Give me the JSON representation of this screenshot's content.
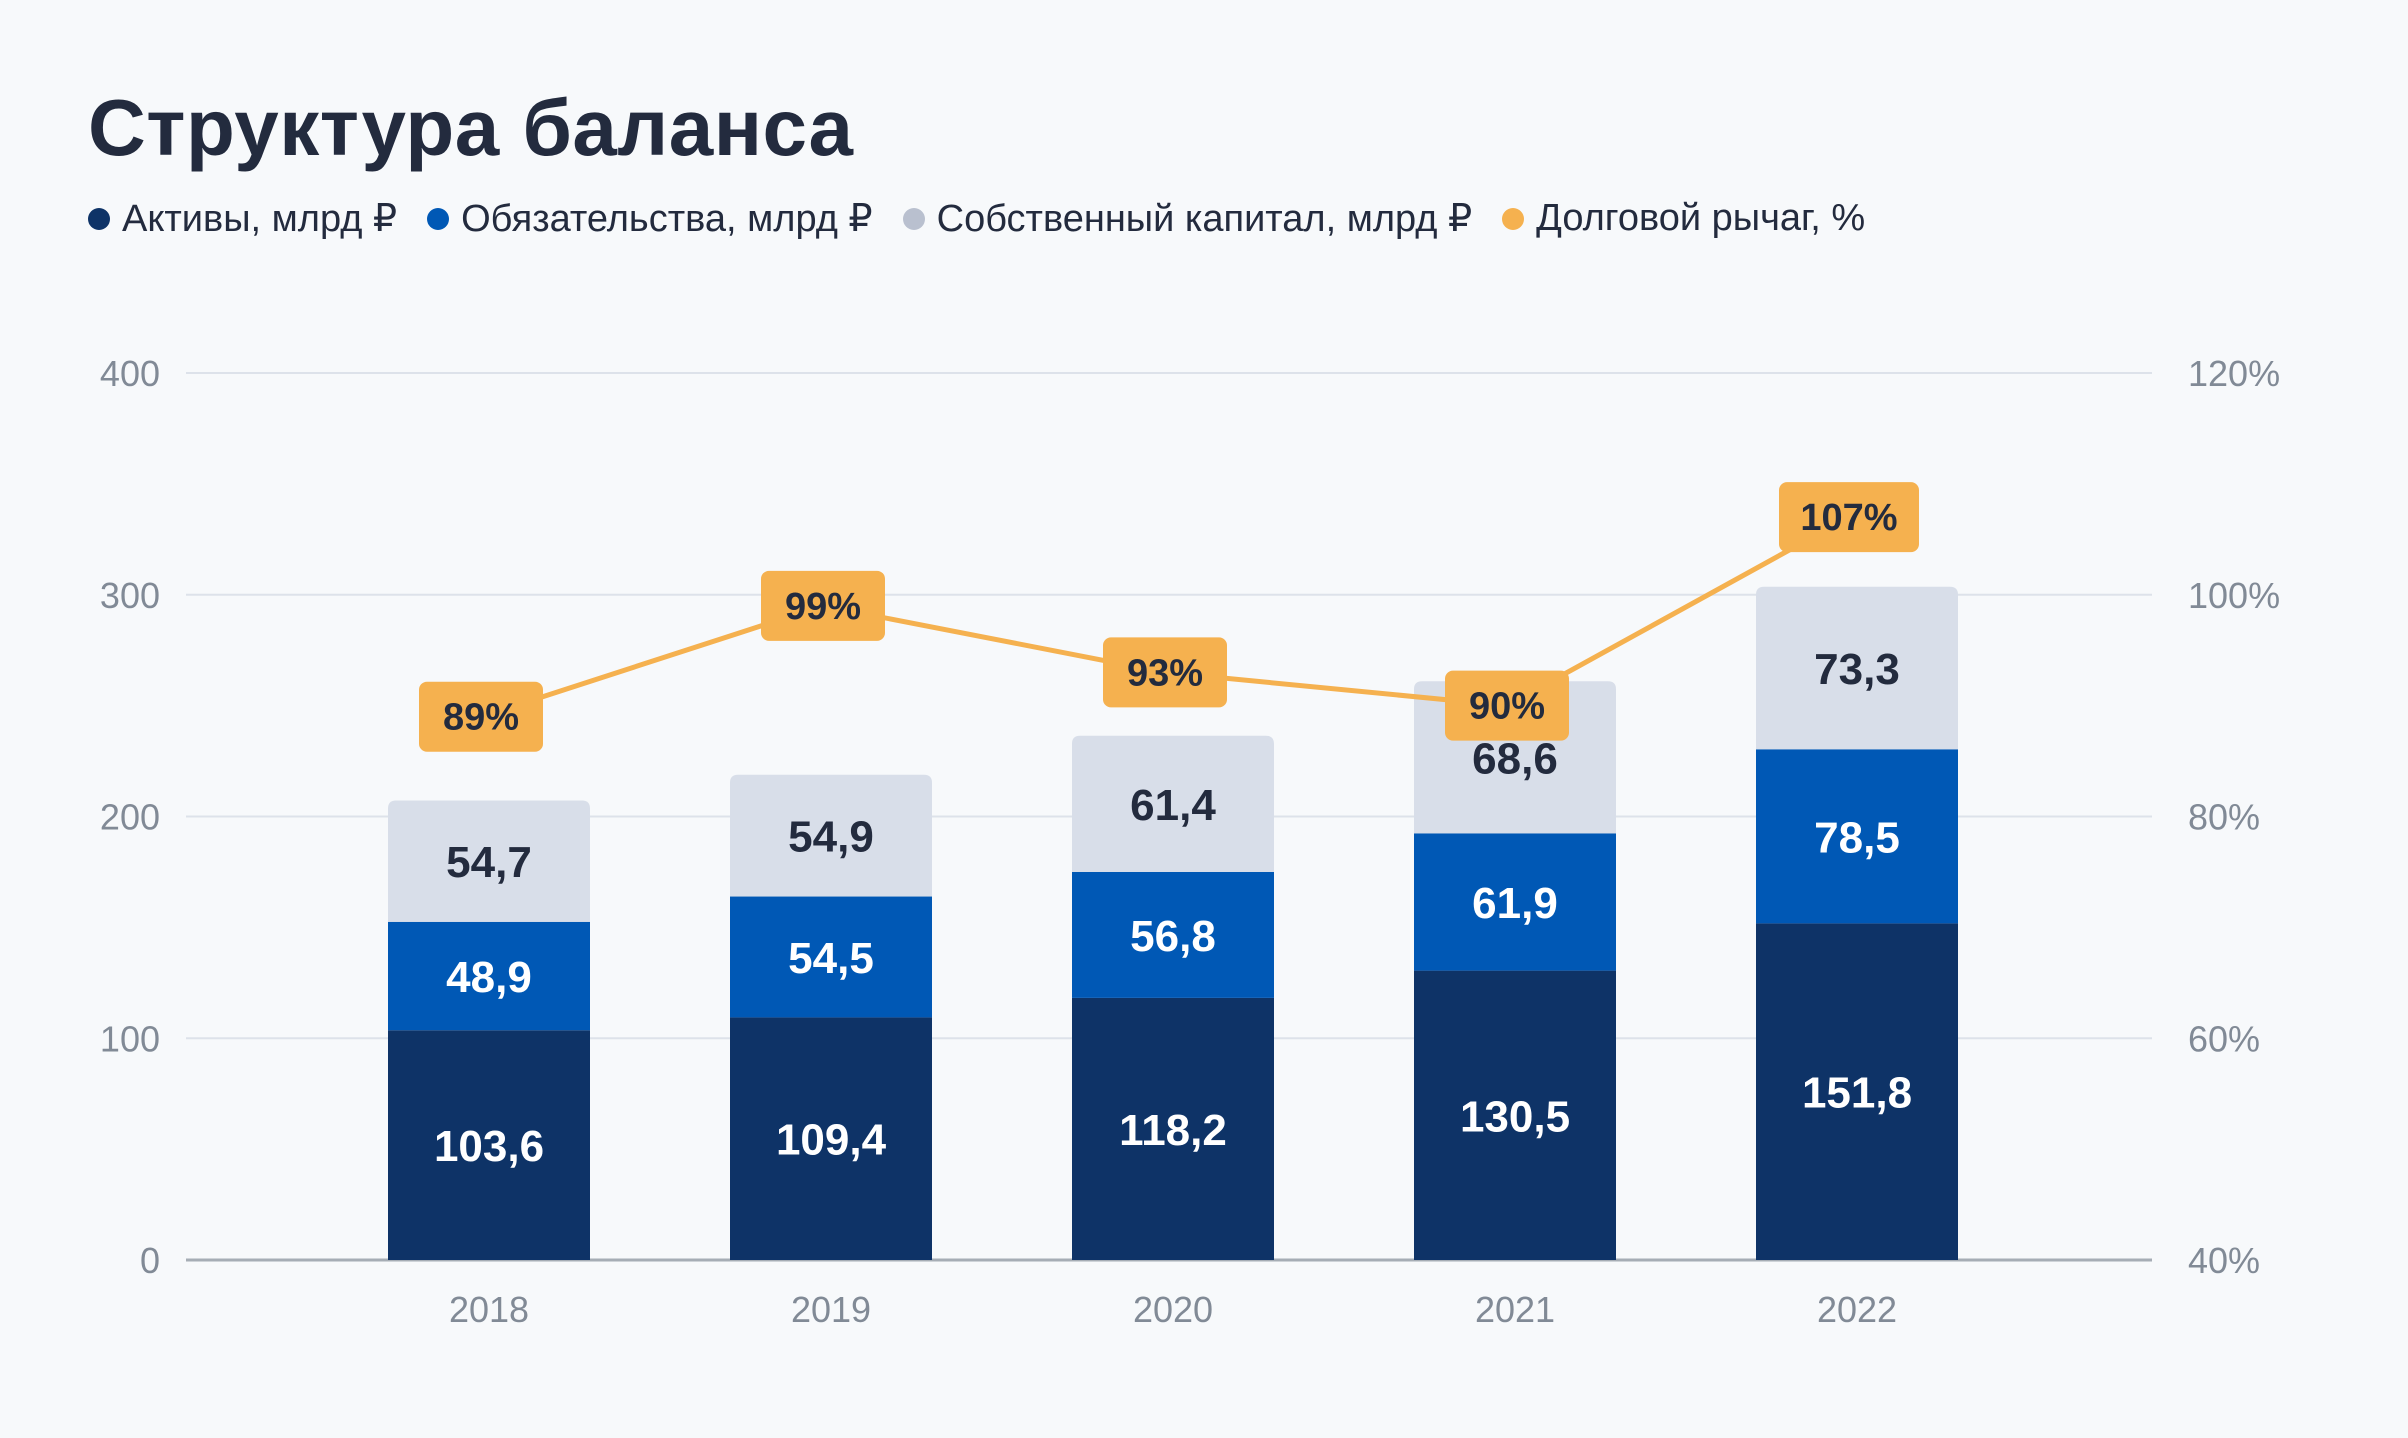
{
  "title": "Структура баланса",
  "legend": [
    {
      "label": "Активы, млрд ₽",
      "color": "#0e3367"
    },
    {
      "label": "Обязательства, млрд ₽",
      "color": "#0058b5"
    },
    {
      "label": "Собственный капитал, млрд ₽",
      "color": "#b9c0cf"
    },
    {
      "label": "Долговой рычаг, %",
      "color": "#f5b14f"
    }
  ],
  "chart_data": {
    "type": "bar",
    "stacked": true,
    "title": "Структура баланса",
    "categories": [
      "2018",
      "2019",
      "2020",
      "2021",
      "2022"
    ],
    "series": [
      {
        "name": "Активы, млрд ₽",
        "type": "bar",
        "color": "#0e3367",
        "label_color": "#ffffff",
        "values": [
          103.6,
          109.4,
          118.2,
          130.5,
          151.8
        ],
        "labels": [
          "103,6",
          "109,4",
          "118,2",
          "130,5",
          "151,8"
        ]
      },
      {
        "name": "Обязательства, млрд ₽",
        "type": "bar",
        "color": "#0058b5",
        "label_color": "#ffffff",
        "values": [
          48.9,
          54.5,
          56.8,
          61.9,
          78.5
        ],
        "labels": [
          "48,9",
          "54,5",
          "56,8",
          "61,9",
          "78,5"
        ]
      },
      {
        "name": "Собственный капитал, млрд ₽",
        "type": "bar",
        "color": "#d8dee9",
        "label_color": "#232b3e",
        "values": [
          54.7,
          54.9,
          61.4,
          68.6,
          73.3
        ],
        "labels": [
          "54,7",
          "54,9",
          "61,4",
          "68,6",
          "73,3"
        ]
      },
      {
        "name": "Долговой рычаг, %",
        "type": "line",
        "axis": "right",
        "color": "#f5b14f",
        "values": [
          89,
          99,
          93,
          90,
          107
        ],
        "labels": [
          "89%",
          "99%",
          "93%",
          "90%",
          "107%"
        ]
      }
    ],
    "y_left": {
      "ylim": [
        0,
        400
      ],
      "ticks": [
        "0",
        "100",
        "200",
        "300",
        "400"
      ],
      "tick_values": [
        0,
        100,
        200,
        300,
        400
      ]
    },
    "y_right": {
      "ylim": [
        40,
        120
      ],
      "ticks": [
        "40%",
        "60%",
        "80%",
        "100%",
        "120%"
      ],
      "tick_values": [
        40,
        60,
        80,
        100,
        120
      ]
    },
    "xlabel": "",
    "ylabel": "",
    "grid": true,
    "legend_position": "top-left"
  }
}
